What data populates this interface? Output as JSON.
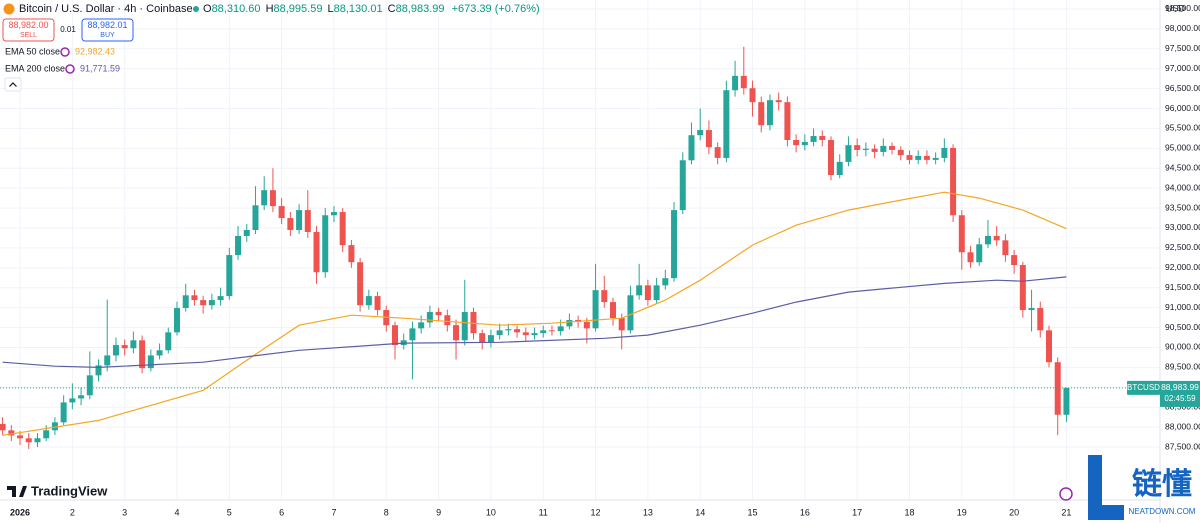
{
  "header": {
    "title": "Bitcoin / U.S. Dollar · 4h · Coinbase",
    "ohlc": [
      {
        "key": "O",
        "label": "88,310.60"
      },
      {
        "key": "H",
        "label": "88,995.59"
      },
      {
        "key": "L",
        "label": "88,130.01"
      },
      {
        "key": "C",
        "label": "88,983.99"
      }
    ],
    "change": "+673.39 (+0.76%)",
    "sell": {
      "price": "88,982.00",
      "label": "SELL"
    },
    "spread": "0.01",
    "buy": {
      "price": "88,982.01",
      "label": "BUY"
    },
    "currency": "USD",
    "logo": "TradingView"
  },
  "watermark": {
    "name": "链懂",
    "site": "NEATDOWN.COM"
  },
  "chart_data": {
    "type": "candlestick",
    "categories": [
      null,
      null,
      "2026",
      null,
      null,
      null,
      null,
      null,
      "2",
      null,
      null,
      null,
      null,
      null,
      "3",
      null,
      null,
      null,
      null,
      null,
      "4",
      null,
      null,
      null,
      null,
      null,
      "5",
      null,
      null,
      null,
      null,
      null,
      "6",
      null,
      null,
      null,
      null,
      null,
      "7",
      null,
      null,
      null,
      null,
      null,
      "8",
      null,
      null,
      null,
      null,
      null,
      "9",
      null,
      null,
      null,
      null,
      null,
      "10",
      null,
      null,
      null,
      null,
      null,
      "11",
      null,
      null,
      null,
      null,
      null,
      "12",
      null,
      null,
      null,
      null,
      null,
      "13",
      null,
      null,
      null,
      null,
      null,
      "14",
      null,
      null,
      null,
      null,
      null,
      "15",
      null,
      null,
      null,
      null,
      null,
      "16",
      null,
      null,
      null,
      null,
      null,
      "17",
      null,
      null,
      null,
      null,
      null,
      "18",
      null,
      null,
      null,
      null,
      null,
      "19",
      null,
      null,
      null,
      null,
      null,
      "20",
      null,
      null,
      null,
      null,
      null,
      "21"
    ],
    "open": [
      88080,
      87920,
      87790,
      87720,
      87620,
      87720,
      87920,
      88120,
      88620,
      88720,
      88800,
      89300,
      89550,
      89800,
      90060,
      89980,
      90180,
      89480,
      89800,
      89930,
      90380,
      90990,
      91310,
      91190,
      91060,
      91190,
      91290,
      92320,
      92800,
      92950,
      93570,
      93950,
      93550,
      93250,
      92950,
      93450,
      92900,
      91890,
      93320,
      93400,
      92570,
      92140,
      91060,
      91290,
      90940,
      90560,
      90060,
      90180,
      90480,
      90630,
      90890,
      90810,
      90560,
      90180,
      90890,
      90360,
      90130,
      90310,
      90430,
      90460,
      90380,
      90310,
      90360,
      90430,
      90410,
      90530,
      90690,
      90640,
      90480,
      91440,
      91140,
      90740,
      90430,
      91310,
      91560,
      91190,
      91560,
      91740,
      93450,
      94700,
      95330,
      95460,
      95030,
      94760,
      96460,
      96820,
      96510,
      96160,
      95580,
      96210,
      96160,
      95210,
      95080,
      95160,
      95310,
      95210,
      94330,
      94660,
      95080,
      94960,
      94990,
      94910,
      95060,
      94960,
      94830,
      94710,
      94810,
      94710,
      94760,
      95010,
      93320,
      92390,
      92140,
      92590,
      92800,
      92690,
      92320,
      92070,
      90940,
      90990,
      90430,
      89630,
      88310.6
    ],
    "high": [
      88250,
      88050,
      87900,
      87850,
      87850,
      88050,
      88250,
      88800,
      89100,
      89000,
      89900,
      89700,
      91200,
      90250,
      90200,
      90400,
      90300,
      89950,
      90100,
      90500,
      91150,
      91600,
      91450,
      91300,
      91350,
      91500,
      92500,
      93050,
      93100,
      94050,
      94300,
      94500,
      93750,
      93400,
      93600,
      93950,
      93050,
      93500,
      93550,
      93500,
      92700,
      92250,
      91450,
      91400,
      91050,
      90650,
      90350,
      90650,
      90800,
      91050,
      91000,
      90950,
      90700,
      91700,
      91000,
      90450,
      90450,
      90600,
      90600,
      90550,
      90500,
      90500,
      90550,
      90550,
      90700,
      90850,
      90800,
      90750,
      92100,
      91800,
      91250,
      90850,
      91550,
      92100,
      91700,
      91750,
      91950,
      93650,
      94900,
      95650,
      96000,
      95700,
      95150,
      96700,
      97200,
      97550,
      96700,
      96300,
      96350,
      96400,
      96300,
      95350,
      95350,
      95500,
      95450,
      95300,
      94850,
      95300,
      95250,
      95150,
      95100,
      95250,
      95150,
      95050,
      94950,
      94950,
      94950,
      94900,
      95250,
      95100,
      93450,
      92550,
      92750,
      93200,
      93050,
      92850,
      92450,
      92150,
      91450,
      91150,
      90550,
      89750,
      88995.59
    ],
    "low": [
      87800,
      87650,
      87550,
      87450,
      87500,
      87650,
      87800,
      88050,
      88450,
      88550,
      88700,
      89150,
      89400,
      89650,
      89800,
      89850,
      89350,
      89400,
      89700,
      89850,
      90300,
      90900,
      91050,
      90850,
      90950,
      91050,
      91200,
      92200,
      92650,
      92850,
      93450,
      93400,
      93100,
      92800,
      92850,
      92750,
      91600,
      91750,
      93150,
      92400,
      92000,
      90900,
      90950,
      90800,
      90400,
      89700,
      89950,
      89200,
      90350,
      90500,
      90650,
      90400,
      89700,
      90050,
      90200,
      89950,
      90000,
      90200,
      90300,
      90250,
      90150,
      90200,
      90250,
      90300,
      90300,
      90450,
      90500,
      90100,
      90400,
      91000,
      90550,
      89950,
      90350,
      91200,
      91050,
      91100,
      91450,
      91650,
      93350,
      94600,
      95200,
      94850,
      94600,
      94650,
      96300,
      96350,
      95800,
      95400,
      95450,
      95950,
      95050,
      94900,
      94950,
      95050,
      95050,
      94200,
      94250,
      94550,
      94800,
      94800,
      94750,
      94800,
      94850,
      94700,
      94600,
      94600,
      94600,
      94600,
      94650,
      93150,
      91950,
      92000,
      92050,
      92500,
      92550,
      92150,
      91850,
      90750,
      90400,
      90250,
      89500,
      87800,
      88130.01
    ],
    "close": [
      87920,
      87790,
      87720,
      87620,
      87720,
      87920,
      88120,
      88620,
      88720,
      88800,
      89300,
      89550,
      89800,
      90060,
      89980,
      90180,
      89480,
      89800,
      89930,
      90380,
      90990,
      91310,
      91190,
      91060,
      91190,
      91290,
      92320,
      92800,
      92950,
      93570,
      93950,
      93550,
      93250,
      92950,
      93450,
      92900,
      91890,
      93320,
      93400,
      92570,
      92140,
      91060,
      91290,
      90940,
      90560,
      90060,
      90180,
      90480,
      90630,
      90890,
      90810,
      90560,
      90180,
      90890,
      90360,
      90130,
      90310,
      90430,
      90460,
      90380,
      90310,
      90360,
      90430,
      90410,
      90530,
      90690,
      90640,
      90480,
      91440,
      91140,
      90740,
      90430,
      91310,
      91560,
      91190,
      91560,
      91740,
      93450,
      94700,
      95330,
      95460,
      95030,
      94760,
      96460,
      96820,
      96510,
      96160,
      95580,
      96210,
      96160,
      95210,
      95080,
      95160,
      95310,
      95210,
      94330,
      94660,
      95080,
      94960,
      94990,
      94910,
      95060,
      94960,
      94830,
      94710,
      94810,
      94710,
      94760,
      95010,
      93320,
      92390,
      92140,
      92590,
      92800,
      92690,
      92320,
      92070,
      90940,
      90990,
      90430,
      89630,
      88310.6,
      88983.99
    ],
    "up_color": "#26a69a",
    "down_color": "#ef5350",
    "overlays": [
      {
        "name": "EMA 50 close",
        "color": "#f5a623",
        "x": [
          0,
          11,
          23,
          28,
          34,
          40,
          46,
          57,
          63,
          71,
          76,
          80,
          86,
          91,
          97,
          103,
          108,
          112,
          117,
          122
        ],
        "values": [
          87795,
          88170,
          88925,
          89680,
          90560,
          90810,
          90735,
          90560,
          90610,
          90735,
          91190,
          91690,
          92570,
          93070,
          93450,
          93700,
          93900,
          93750,
          93450,
          92982.43
        ],
        "value_labels": [
          null,
          null,
          null,
          null,
          null,
          null,
          null,
          null,
          null,
          null,
          null,
          null,
          null,
          null,
          null,
          null,
          null,
          null,
          null,
          "92,982.43"
        ]
      },
      {
        "name": "EMA 200 close",
        "color": "#5b5ea6",
        "x": [
          0,
          6,
          11,
          23,
          34,
          46,
          57,
          69,
          74,
          80,
          86,
          91,
          97,
          103,
          108,
          114,
          117,
          122
        ],
        "values": [
          89630,
          89530,
          89500,
          89630,
          89930,
          90110,
          90130,
          90230,
          90310,
          90560,
          90860,
          91140,
          91390,
          91510,
          91610,
          91690,
          91665,
          91771.59
        ],
        "value_labels": [
          null,
          null,
          null,
          null,
          null,
          null,
          null,
          null,
          null,
          null,
          null,
          null,
          null,
          null,
          null,
          null,
          null,
          "91,771.59"
        ]
      }
    ],
    "last_price": {
      "value": 88983.99,
      "label": "88,983.99",
      "symbol": "BTCUSD",
      "countdown": "02:45:59"
    },
    "ylim": [
      86170,
      98725
    ],
    "yticks": [
      {
        "value": 87500,
        "label": "87,500.00"
      },
      {
        "value": 88000,
        "label": "88,000.00"
      },
      {
        "value": 88500,
        "label": "88,500.00"
      },
      {
        "value": 89000,
        "label": "89,000.00"
      },
      {
        "value": 89500,
        "label": "89,500.00"
      },
      {
        "value": 90000,
        "label": "90,000.00"
      },
      {
        "value": 90500,
        "label": "90,500.00"
      },
      {
        "value": 91000,
        "label": "91,000.00"
      },
      {
        "value": 91500,
        "label": "91,500.00"
      },
      {
        "value": 92000,
        "label": "92,000.00"
      },
      {
        "value": 92500,
        "label": "92,500.00"
      },
      {
        "value": 93000,
        "label": "93,000.00"
      },
      {
        "value": 93500,
        "label": "93,500.00"
      },
      {
        "value": 94000,
        "label": "94,000.00"
      },
      {
        "value": 94500,
        "label": "94,500.00"
      },
      {
        "value": 95000,
        "label": "95,000.00"
      },
      {
        "value": 95500,
        "label": "95,500.00"
      },
      {
        "value": 96000,
        "label": "96,000.00"
      },
      {
        "value": 96500,
        "label": "96,500.00"
      },
      {
        "value": 97000,
        "label": "97,000.00"
      },
      {
        "value": 97500,
        "label": "97,500.00"
      },
      {
        "value": 98000,
        "label": "98,000.00"
      },
      {
        "value": 98500,
        "label": "98,500.00"
      }
    ],
    "grid": true
  }
}
